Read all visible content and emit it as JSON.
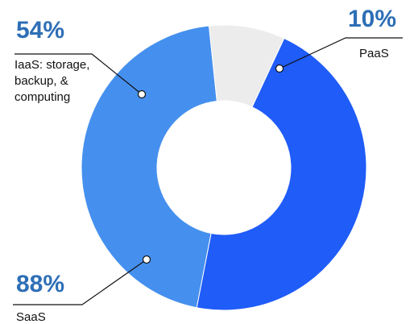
{
  "chart_data": {
    "type": "pie",
    "variant": "donut",
    "categories": [
      "IaaS: storage, backup, & computing",
      "PaaS",
      "SaaS"
    ],
    "values": [
      54,
      10,
      88
    ],
    "value_labels": [
      "54%",
      "10%",
      "88%"
    ],
    "label_lines": [
      [
        "IaaS: storage,",
        "backup, &",
        "computing"
      ],
      [
        "PaaS"
      ],
      [
        "SaaS"
      ]
    ],
    "colors": [
      "#4590ee",
      "#ececec",
      "#1f5cf8"
    ],
    "label_color": "#2e6fb6",
    "legend": "none",
    "grid": false
  }
}
